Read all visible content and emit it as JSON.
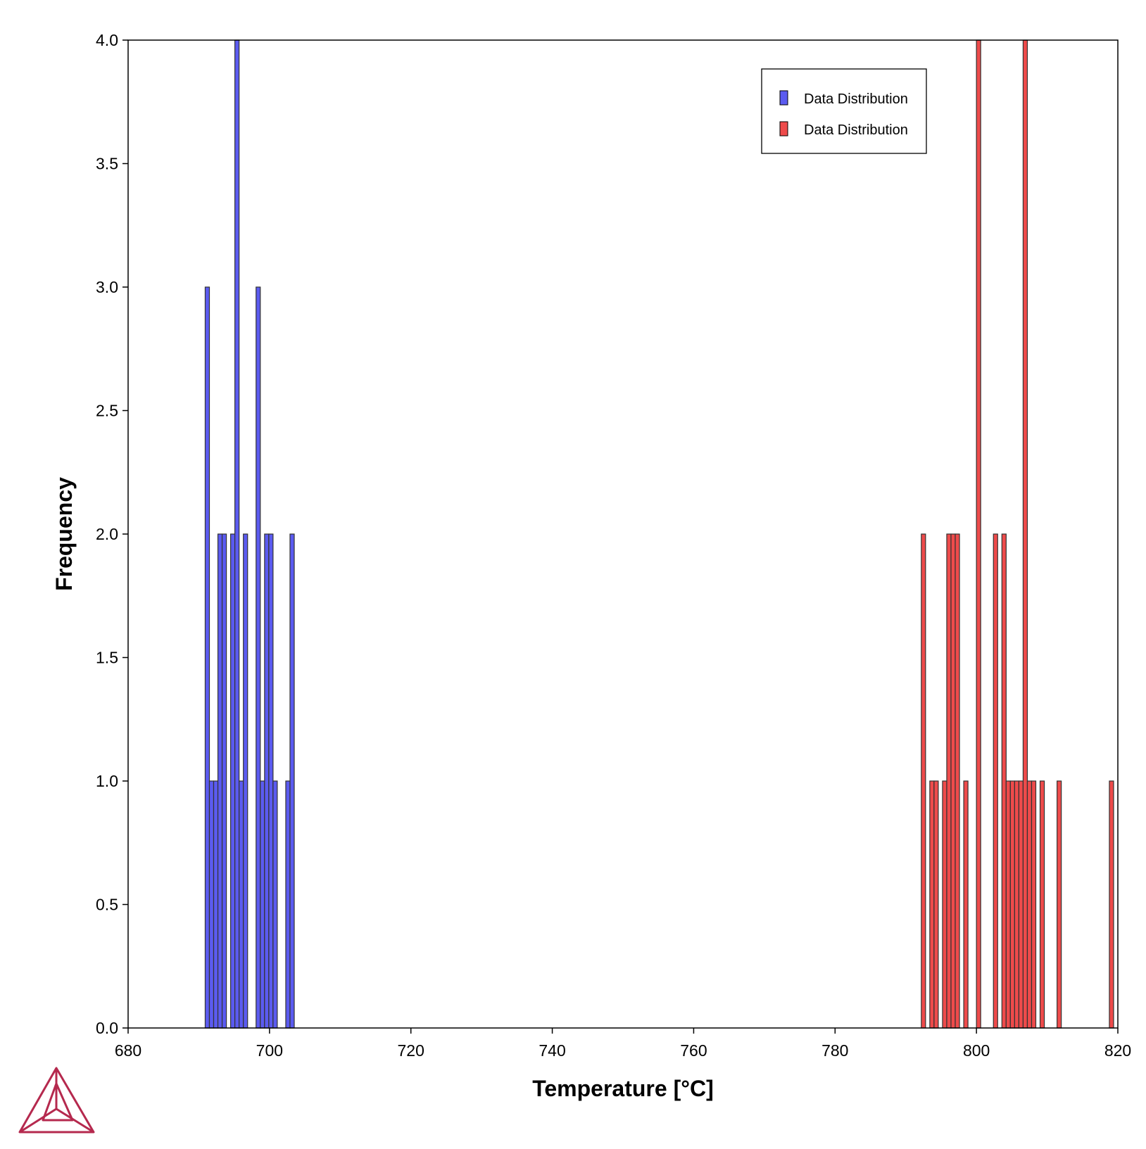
{
  "chart_data": {
    "type": "bar",
    "xlabel": "Temperature [°C]",
    "ylabel": "Frequency",
    "xlim": [
      680,
      820
    ],
    "ylim": [
      0,
      4
    ],
    "x_ticks": [
      680,
      700,
      720,
      740,
      760,
      780,
      800,
      820
    ],
    "y_ticks": [
      "0.0",
      "0.5",
      "1.0",
      "1.5",
      "2.0",
      "2.5",
      "3.0",
      "3.5",
      "4.0"
    ],
    "bin_width": 0.6,
    "grid": false,
    "legend_position": "top-right",
    "series": [
      {
        "name": "Data Distribution",
        "color": "#5b5bf0",
        "bins": [
          {
            "x": 691.2,
            "count": 3
          },
          {
            "x": 691.8,
            "count": 1
          },
          {
            "x": 692.4,
            "count": 1
          },
          {
            "x": 693.0,
            "count": 2
          },
          {
            "x": 693.6,
            "count": 2
          },
          {
            "x": 694.8,
            "count": 2
          },
          {
            "x": 695.4,
            "count": 4
          },
          {
            "x": 696.0,
            "count": 1
          },
          {
            "x": 696.6,
            "count": 2
          },
          {
            "x": 698.4,
            "count": 3
          },
          {
            "x": 699.0,
            "count": 1
          },
          {
            "x": 699.6,
            "count": 2
          },
          {
            "x": 700.2,
            "count": 2
          },
          {
            "x": 700.8,
            "count": 1
          },
          {
            "x": 702.6,
            "count": 1
          },
          {
            "x": 703.2,
            "count": 2
          }
        ]
      },
      {
        "name": "Data Distribution",
        "color": "#ee4b4b",
        "bins": [
          {
            "x": 792.5,
            "count": 2
          },
          {
            "x": 793.7,
            "count": 1
          },
          {
            "x": 794.3,
            "count": 1
          },
          {
            "x": 795.5,
            "count": 1
          },
          {
            "x": 796.1,
            "count": 2
          },
          {
            "x": 796.7,
            "count": 2
          },
          {
            "x": 797.3,
            "count": 2
          },
          {
            "x": 798.5,
            "count": 1
          },
          {
            "x": 800.3,
            "count": 4
          },
          {
            "x": 802.7,
            "count": 2
          },
          {
            "x": 803.9,
            "count": 2
          },
          {
            "x": 804.5,
            "count": 1
          },
          {
            "x": 805.1,
            "count": 1
          },
          {
            "x": 805.7,
            "count": 1
          },
          {
            "x": 806.3,
            "count": 1
          },
          {
            "x": 806.9,
            "count": 4
          },
          {
            "x": 807.5,
            "count": 1
          },
          {
            "x": 808.1,
            "count": 1
          },
          {
            "x": 809.3,
            "count": 1
          },
          {
            "x": 811.7,
            "count": 1
          },
          {
            "x": 819.1,
            "count": 1
          }
        ]
      }
    ]
  },
  "logo": {
    "icon": "thermo-calc-triangle-logo-icon",
    "color": "#b5294e"
  }
}
